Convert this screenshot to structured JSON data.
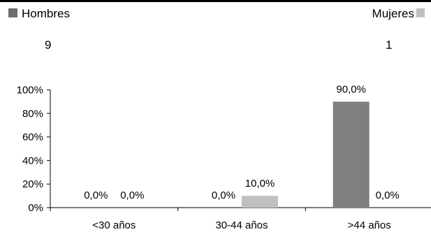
{
  "legend": {
    "men_label": "Hombres",
    "women_label": "Mujeres",
    "men_color": "#6d6d6d",
    "women_color": "#c0c0c0"
  },
  "counts": {
    "men": "9",
    "women": "1"
  },
  "chart_data": {
    "type": "bar",
    "categories": [
      "<30 años",
      "30-44 años",
      ">44 años"
    ],
    "series": [
      {
        "name": "Hombres",
        "values": [
          0.0,
          0.0,
          90.0
        ],
        "labels": [
          "0,0%",
          "0,0%",
          "90,0%"
        ],
        "color": "#7f7f7f"
      },
      {
        "name": "Mujeres",
        "values": [
          0.0,
          10.0,
          0.0
        ],
        "labels": [
          "0,0%",
          "10,0%",
          "0,0%"
        ],
        "color": "#c0c0c0"
      }
    ],
    "yticks": [
      "0%",
      "20%",
      "40%",
      "60%",
      "80%",
      "100%"
    ],
    "ylim": [
      0,
      100
    ],
    "grid": false,
    "legend_position": "top"
  }
}
